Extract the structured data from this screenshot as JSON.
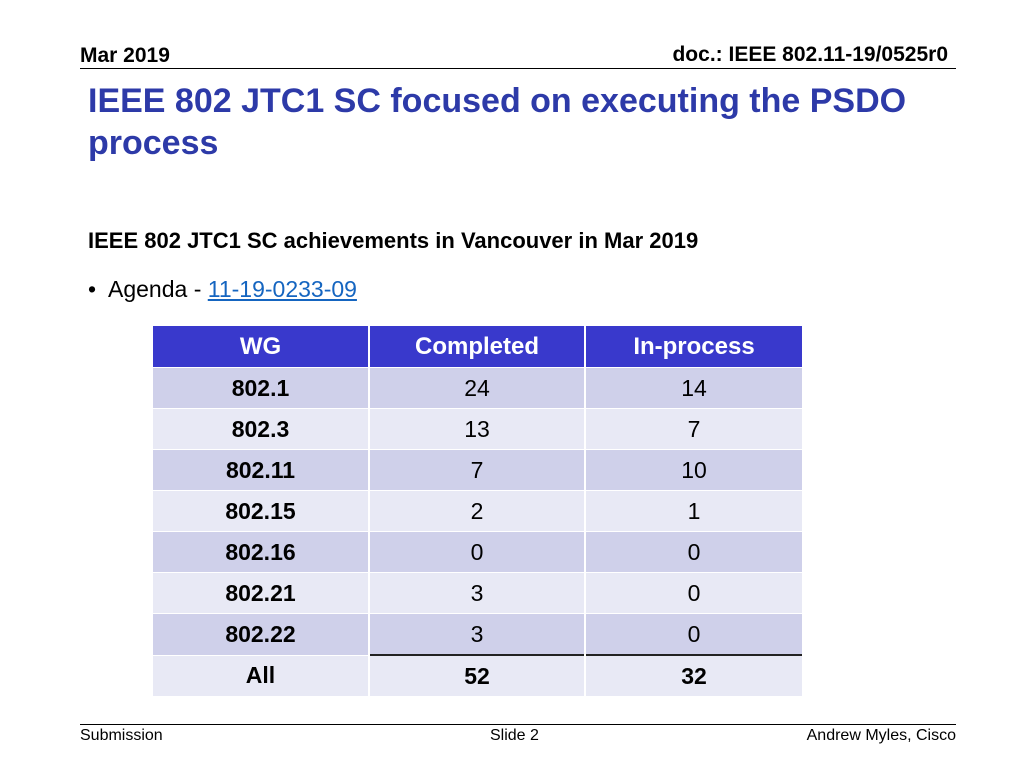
{
  "header": {
    "date": "Mar 2019",
    "doc_id": "doc.: IEEE 802.11-19/0525r0"
  },
  "title": "IEEE 802 JTC1 SC focused on executing the PSDO process",
  "subheading": "IEEE 802 JTC1 SC achievements in Vancouver in Mar 2019",
  "agenda": {
    "bullet": "•",
    "label": "Agenda - ",
    "link_text": "11-19-0233-09"
  },
  "table": {
    "headers": [
      "WG",
      "Completed",
      "In-process"
    ],
    "rows": [
      {
        "wg": "802.1",
        "completed": "24",
        "in_process": "14"
      },
      {
        "wg": "802.3",
        "completed": "13",
        "in_process": "7"
      },
      {
        "wg": "802.11",
        "completed": "7",
        "in_process": "10"
      },
      {
        "wg": "802.15",
        "completed": "2",
        "in_process": "1"
      },
      {
        "wg": "802.16",
        "completed": "0",
        "in_process": "0"
      },
      {
        "wg": "802.21",
        "completed": "3",
        "in_process": "0"
      },
      {
        "wg": "802.22",
        "completed": "3",
        "in_process": "0"
      }
    ],
    "total": {
      "wg": "All",
      "completed": "52",
      "in_process": "32"
    }
  },
  "footer": {
    "left": "Submission",
    "center": "Slide 2",
    "right": "Andrew Myles, Cisco"
  },
  "colors": {
    "title": "#2d3aa8",
    "table_header": "#3939cc",
    "row_odd": "#cfd0ea",
    "row_even": "#e8e9f5",
    "link": "#1565c0"
  }
}
